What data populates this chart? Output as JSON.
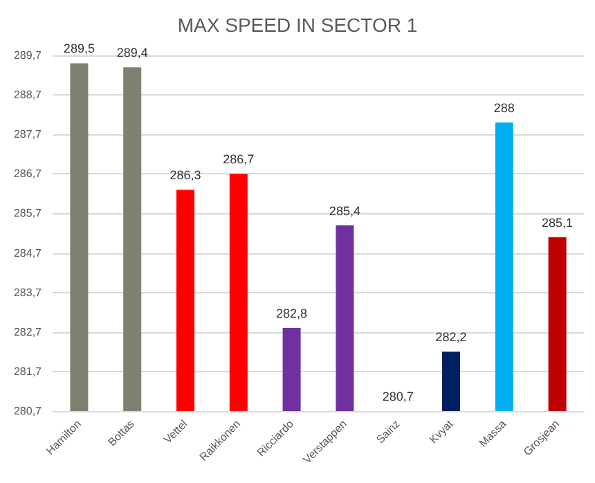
{
  "chart_data": {
    "type": "bar",
    "title": "MAX SPEED IN SECTOR 1",
    "categories": [
      "Hamilton",
      "Bottas",
      "Vettel",
      "Raikkonen",
      "Ricciardo",
      "Verstappen",
      "Sainz",
      "Kvyat",
      "Massa",
      "Grosjean"
    ],
    "values": [
      289.5,
      289.4,
      286.3,
      286.7,
      282.8,
      285.4,
      280.7,
      282.2,
      288,
      285.1
    ],
    "value_labels": [
      "289,5",
      "289,4",
      "286,3",
      "286,7",
      "282,8",
      "285,4",
      "280,7",
      "282,2",
      "288",
      "285,1"
    ],
    "colors": [
      "#7f8070",
      "#7f8070",
      "#ff0000",
      "#ff0000",
      "#7030a0",
      "#7030a0",
      "#7030a0",
      "#002060",
      "#00b0f0",
      "#c00000"
    ],
    "ylim": [
      280.7,
      289.7
    ],
    "yticks": [
      {
        "value": 280.7,
        "label": "280,7"
      },
      {
        "value": 281.7,
        "label": "281,7"
      },
      {
        "value": 282.7,
        "label": "282,7"
      },
      {
        "value": 283.7,
        "label": "283,7"
      },
      {
        "value": 284.7,
        "label": "284,7"
      },
      {
        "value": 285.7,
        "label": "285,7"
      },
      {
        "value": 286.7,
        "label": "286,7"
      },
      {
        "value": 287.7,
        "label": "287,7"
      },
      {
        "value": 288.7,
        "label": "288,7"
      },
      {
        "value": 289.7,
        "label": "289,7"
      }
    ],
    "grid": "y"
  }
}
